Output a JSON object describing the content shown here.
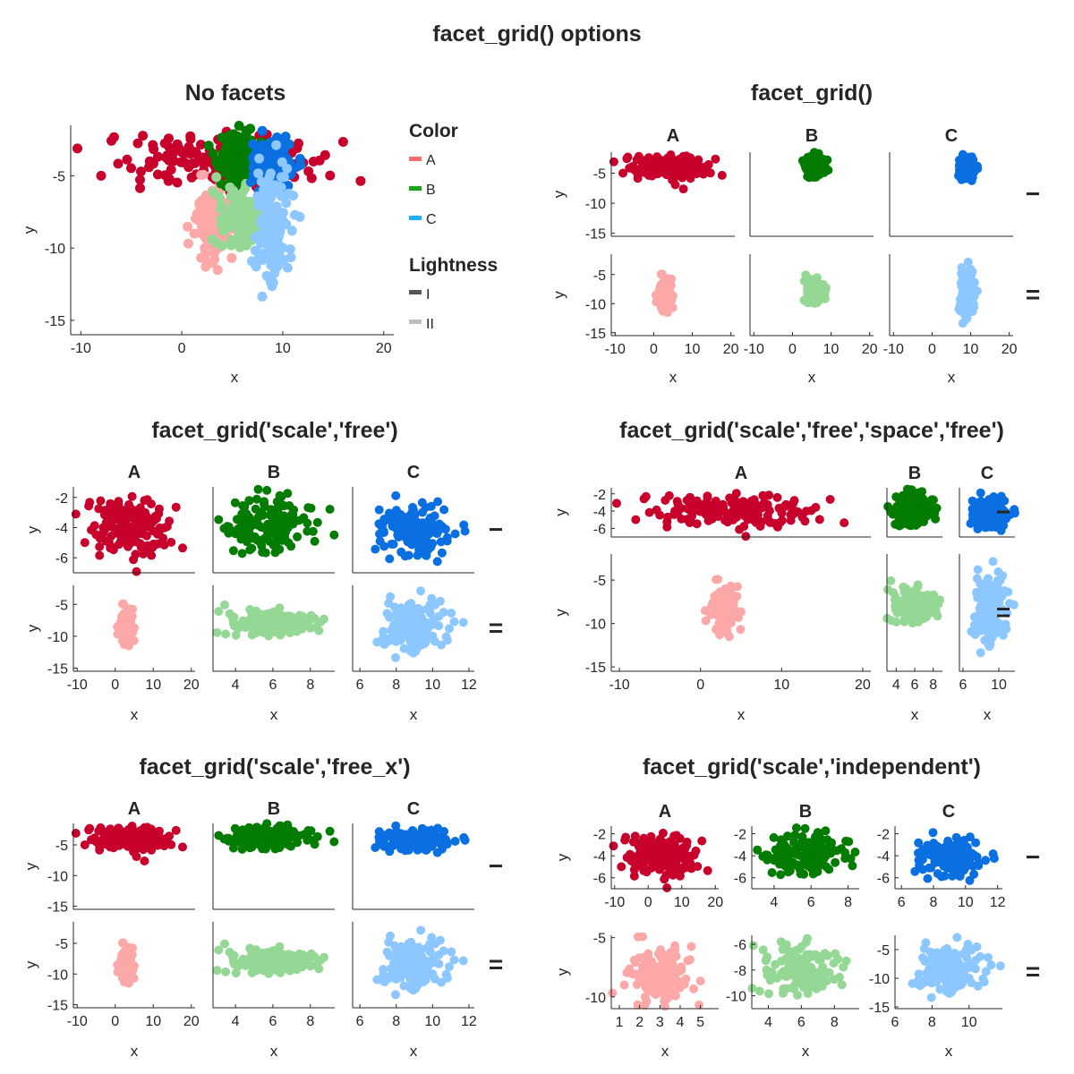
{
  "figure": {
    "title": "facet_grid() options",
    "colors": {
      "A_I": "#c8002c",
      "A_II": "#fca8a8",
      "B_I": "#037c01",
      "B_II": "#95d895",
      "C_I": "#0a6fe0",
      "C_II": "#8cc8ff",
      "axis": "#262626"
    },
    "legend": {
      "color_title": "Color",
      "color_items": [
        {
          "label": "A",
          "color": "#f86e6e"
        },
        {
          "label": "B",
          "color": "#18a518"
        },
        {
          "label": "C",
          "color": "#1ab0ff"
        }
      ],
      "lightness_title": "Lightness",
      "lightness_items": [
        {
          "label": "I",
          "color": "#555555"
        },
        {
          "label": "II",
          "color": "#bfbfbf"
        }
      ]
    }
  },
  "chart_data": [
    {
      "type": "scatter",
      "title": "No facets",
      "xlabel": "x",
      "ylabel": "y",
      "facets": "none",
      "xlim": [
        -11,
        21
      ],
      "ylim": [
        -16,
        -1.5
      ],
      "xticks": [
        -10,
        0,
        10,
        20
      ],
      "yticks": [
        -5,
        -10,
        -15
      ],
      "series": [
        {
          "group": "A",
          "lightness": "I",
          "x_center": 3,
          "y_center": -4,
          "x_spread": 5,
          "y_spread": 1
        },
        {
          "group": "A",
          "lightness": "II",
          "x_center": 3,
          "y_center": -8,
          "x_spread": 0.8,
          "y_spread": 1.2
        },
        {
          "group": "B",
          "lightness": "I",
          "x_center": 6,
          "y_center": -4,
          "x_spread": 1.1,
          "y_spread": 0.9
        },
        {
          "group": "B",
          "lightness": "II",
          "x_center": 6,
          "y_center": -8,
          "x_spread": 1.1,
          "y_spread": 0.9
        },
        {
          "group": "C",
          "lightness": "I",
          "x_center": 9,
          "y_center": -4,
          "x_spread": 1.1,
          "y_spread": 0.9
        },
        {
          "group": "C",
          "lightness": "II",
          "x_center": 9,
          "y_center": -8.5,
          "x_spread": 0.9,
          "y_spread": 2.2
        }
      ]
    },
    {
      "type": "scatter",
      "title": "facet_grid()",
      "facets": "grid",
      "xlabel": "x",
      "ylabel": "y",
      "columns": [
        "A",
        "B",
        "C"
      ],
      "rows": [
        "−",
        "="
      ],
      "panels": [
        {
          "xlim": [
            -11,
            21
          ],
          "ylim": [
            -15.5,
            -1.5
          ],
          "xticks": [
            -10,
            0,
            10,
            20
          ],
          "yticks": [
            -5,
            -10,
            -15
          ]
        },
        {
          "xlim": [
            -11,
            21
          ],
          "ylim": [
            -15.5,
            -1.5
          ],
          "xticks": [
            -10,
            0,
            10,
            20
          ],
          "yticks": [
            -5,
            -10,
            -15
          ]
        },
        {
          "xlim": [
            -11,
            21
          ],
          "ylim": [
            -15.5,
            -1.5
          ],
          "xticks": [
            -10,
            0,
            10,
            20
          ],
          "yticks": [
            -5,
            -10,
            -15
          ]
        },
        {
          "xlim": [
            -11,
            21
          ],
          "ylim": [
            -15.5,
            -1.5
          ],
          "xticks": [
            -10,
            0,
            10,
            20
          ],
          "yticks": [
            -5,
            -10,
            -15
          ]
        },
        {
          "xlim": [
            -11,
            21
          ],
          "ylim": [
            -15.5,
            -1.5
          ],
          "xticks": [
            -10,
            0,
            10,
            20
          ],
          "yticks": [
            -5,
            -10,
            -15
          ]
        },
        {
          "xlim": [
            -11,
            21
          ],
          "ylim": [
            -15.5,
            -1.5
          ],
          "xticks": [
            -10,
            0,
            10,
            20
          ],
          "yticks": [
            -5,
            -10,
            -15
          ]
        }
      ]
    },
    {
      "type": "scatter",
      "title": "facet_grid('scale','free')",
      "facets": "grid",
      "xlabel": "x",
      "ylabel": "y",
      "columns": [
        "A",
        "B",
        "C"
      ],
      "rows": [
        "−",
        "="
      ],
      "panels": [
        {
          "xlim": [
            -11,
            21
          ],
          "ylim": [
            -7,
            -1.3
          ],
          "xticks": [
            -10,
            0,
            10,
            20
          ],
          "yticks": [
            -2,
            -4,
            -6
          ]
        },
        {
          "xlim": [
            2.8,
            9.3
          ],
          "ylim": [
            -7,
            -1.3
          ],
          "xticks": [
            4,
            6,
            8
          ],
          "yticks": [
            -2,
            -4,
            -6
          ]
        },
        {
          "xlim": [
            5.6,
            12.3
          ],
          "ylim": [
            -7,
            -1.3
          ],
          "xticks": [
            6,
            8,
            10,
            12
          ],
          "yticks": [
            -2,
            -4,
            -6
          ]
        },
        {
          "xlim": [
            -11,
            21
          ],
          "ylim": [
            -15.5,
            -2
          ],
          "xticks": [
            -10,
            0,
            10,
            20
          ],
          "yticks": [
            -5,
            -10,
            -15
          ]
        },
        {
          "xlim": [
            2.8,
            9.3
          ],
          "ylim": [
            -15.5,
            -2
          ],
          "xticks": [
            4,
            6,
            8
          ],
          "yticks": [
            -5,
            -10,
            -15
          ]
        },
        {
          "xlim": [
            5.6,
            12.3
          ],
          "ylim": [
            -15.5,
            -2
          ],
          "xticks": [
            6,
            8,
            10,
            12
          ],
          "yticks": [
            -5,
            -10,
            -15
          ]
        }
      ]
    },
    {
      "type": "scatter",
      "title": "facet_grid('scale','free','space','free')",
      "facets": "grid",
      "xlabel": "x",
      "ylabel": "y",
      "columns": [
        "A",
        "B",
        "C"
      ],
      "rows": [
        "−",
        "="
      ],
      "panels": [
        {
          "xlim": [
            -11,
            21
          ],
          "ylim": [
            -7,
            -1.3
          ],
          "xticks": [
            -10,
            0,
            10,
            20
          ],
          "yticks": [
            -2,
            -4,
            -6
          ]
        },
        {
          "xlim": [
            3,
            9
          ],
          "ylim": [
            -7,
            -1.3
          ],
          "xticks": [
            4,
            6,
            8
          ],
          "yticks": []
        },
        {
          "xlim": [
            5.6,
            11.8
          ],
          "ylim": [
            -7,
            -1.3
          ],
          "xticks": [
            6,
            10
          ],
          "yticks": []
        },
        {
          "xlim": [
            -11,
            21
          ],
          "ylim": [
            -15.5,
            -2
          ],
          "xticks": [
            -10,
            0,
            10,
            20
          ],
          "yticks": [
            -5,
            -10,
            -15
          ]
        },
        {
          "xlim": [
            3,
            9
          ],
          "ylim": [
            -15.5,
            -2
          ],
          "xticks": [
            4,
            6,
            8
          ],
          "yticks": []
        },
        {
          "xlim": [
            5.6,
            11.8
          ],
          "ylim": [
            -15.5,
            -2
          ],
          "xticks": [
            6,
            10
          ],
          "yticks": []
        }
      ]
    },
    {
      "type": "scatter",
      "title": "facet_grid('scale','free_x')",
      "facets": "grid",
      "xlabel": "x",
      "ylabel": "y",
      "columns": [
        "A",
        "B",
        "C"
      ],
      "rows": [
        "−",
        "="
      ],
      "panels": [
        {
          "xlim": [
            -11,
            21
          ],
          "ylim": [
            -15.5,
            -1.5
          ],
          "xticks": [
            -10,
            0,
            10,
            20
          ],
          "yticks": [
            -5,
            -10,
            -15
          ]
        },
        {
          "xlim": [
            2.8,
            9.3
          ],
          "ylim": [
            -15.5,
            -1.5
          ],
          "xticks": [
            4,
            6,
            8
          ],
          "yticks": [
            -5,
            -10,
            -15
          ]
        },
        {
          "xlim": [
            5.6,
            12.3
          ],
          "ylim": [
            -15.5,
            -1.5
          ],
          "xticks": [
            6,
            8,
            10,
            12
          ],
          "yticks": [
            -5,
            -10,
            -15
          ]
        },
        {
          "xlim": [
            -11,
            21
          ],
          "ylim": [
            -15.5,
            -1.5
          ],
          "xticks": [
            -10,
            0,
            10,
            20
          ],
          "yticks": [
            -5,
            -10,
            -15
          ]
        },
        {
          "xlim": [
            2.8,
            9.3
          ],
          "ylim": [
            -15.5,
            -1.5
          ],
          "xticks": [
            4,
            6,
            8
          ],
          "yticks": [
            -5,
            -10,
            -15
          ]
        },
        {
          "xlim": [
            5.6,
            12.3
          ],
          "ylim": [
            -15.5,
            -1.5
          ],
          "xticks": [
            6,
            8,
            10,
            12
          ],
          "yticks": [
            -5,
            -10,
            -15
          ]
        }
      ]
    },
    {
      "type": "scatter",
      "title": "facet_grid('scale','independent')",
      "facets": "grid",
      "xlabel": "x",
      "ylabel": "y",
      "columns": [
        "A",
        "B",
        "C"
      ],
      "rows": [
        "−",
        "="
      ],
      "panels": [
        {
          "xlim": [
            -11,
            21
          ],
          "ylim": [
            -7,
            -1.3
          ],
          "xticks": [
            -10,
            0,
            10,
            20
          ],
          "yticks": [
            -2,
            -4,
            -6
          ]
        },
        {
          "xlim": [
            2.8,
            8.6
          ],
          "ylim": [
            -7,
            -1.3
          ],
          "xticks": [
            4,
            6,
            8
          ],
          "yticks": [
            -2,
            -4,
            -6
          ]
        },
        {
          "xlim": [
            5.6,
            12.3
          ],
          "ylim": [
            -7,
            -1.3
          ],
          "xticks": [
            6,
            8,
            10,
            12
          ],
          "yticks": [
            -2,
            -4,
            -6
          ]
        },
        {
          "xlim": [
            0.6,
            5.9
          ],
          "ylim": [
            -11,
            -4.8
          ],
          "xticks": [
            1,
            2,
            3,
            4,
            5
          ],
          "yticks": [
            -5,
            -10
          ]
        },
        {
          "xlim": [
            3,
            9.5
          ],
          "ylim": [
            -11,
            -5.3
          ],
          "xticks": [
            4,
            6,
            8
          ],
          "yticks": [
            -6,
            -8,
            -10
          ]
        },
        {
          "xlim": [
            6,
            11.8
          ],
          "ylim": [
            -15.3,
            -2.5
          ],
          "xticks": [
            6,
            8,
            10
          ],
          "yticks": [
            -5,
            -10,
            -15
          ]
        }
      ]
    }
  ],
  "clusters": {
    "A_I": {
      "x_center": 3,
      "y_center": -4,
      "x_spread": 5,
      "y_spread": 1
    },
    "B_I": {
      "x_center": 6,
      "y_center": -4,
      "x_spread": 1.1,
      "y_spread": 0.9
    },
    "C_I": {
      "x_center": 9,
      "y_center": -4,
      "x_spread": 1.1,
      "y_spread": 0.9
    },
    "A_II": {
      "x_center": 3,
      "y_center": -8,
      "x_spread": 0.8,
      "y_spread": 1.2
    },
    "B_II": {
      "x_center": 6,
      "y_center": -8,
      "x_spread": 1.1,
      "y_spread": 0.9
    },
    "C_II": {
      "x_center": 9,
      "y_center": -8.5,
      "x_spread": 0.9,
      "y_spread": 2.2
    }
  }
}
